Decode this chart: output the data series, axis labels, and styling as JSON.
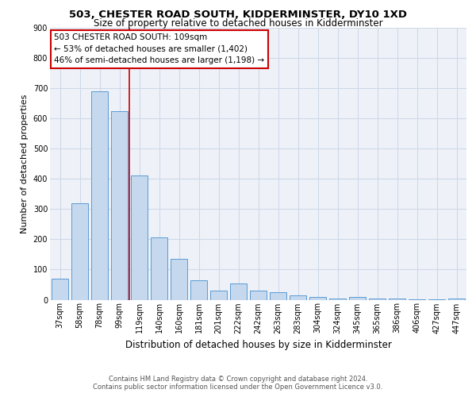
{
  "title1": "503, CHESTER ROAD SOUTH, KIDDERMINSTER, DY10 1XD",
  "title2": "Size of property relative to detached houses in Kidderminster",
  "xlabel": "Distribution of detached houses by size in Kidderminster",
  "ylabel": "Number of detached properties",
  "categories": [
    "37sqm",
    "58sqm",
    "78sqm",
    "99sqm",
    "119sqm",
    "140sqm",
    "160sqm",
    "181sqm",
    "201sqm",
    "222sqm",
    "242sqm",
    "263sqm",
    "283sqm",
    "304sqm",
    "324sqm",
    "345sqm",
    "365sqm",
    "386sqm",
    "406sqm",
    "427sqm",
    "447sqm"
  ],
  "values": [
    70,
    320,
    690,
    625,
    410,
    205,
    135,
    65,
    30,
    55,
    30,
    25,
    15,
    10,
    5,
    8,
    3,
    5,
    2,
    2,
    5
  ],
  "bar_color": "#c5d8ed",
  "bar_edge_color": "#5b9bd5",
  "grid_color": "#d0d8e8",
  "bg_color": "#eef2f8",
  "annotation_line1": "503 CHESTER ROAD SOUTH: 109sqm",
  "annotation_line2": "← 53% of detached houses are smaller (1,402)",
  "annotation_line3": "46% of semi-detached houses are larger (1,198) →",
  "ref_line_color": "#cc0000",
  "annotation_box_color": "#ffffff",
  "annotation_box_edge_color": "#cc0000",
  "footer_text": "Contains HM Land Registry data © Crown copyright and database right 2024.\nContains public sector information licensed under the Open Government Licence v3.0.",
  "ylim": [
    0,
    900
  ],
  "yticks": [
    0,
    100,
    200,
    300,
    400,
    500,
    600,
    700,
    800,
    900
  ],
  "title1_fontsize": 9.5,
  "title2_fontsize": 8.5,
  "xlabel_fontsize": 8.5,
  "ylabel_fontsize": 8,
  "tick_fontsize": 7,
  "annotation_fontsize": 7.5,
  "footer_fontsize": 6
}
